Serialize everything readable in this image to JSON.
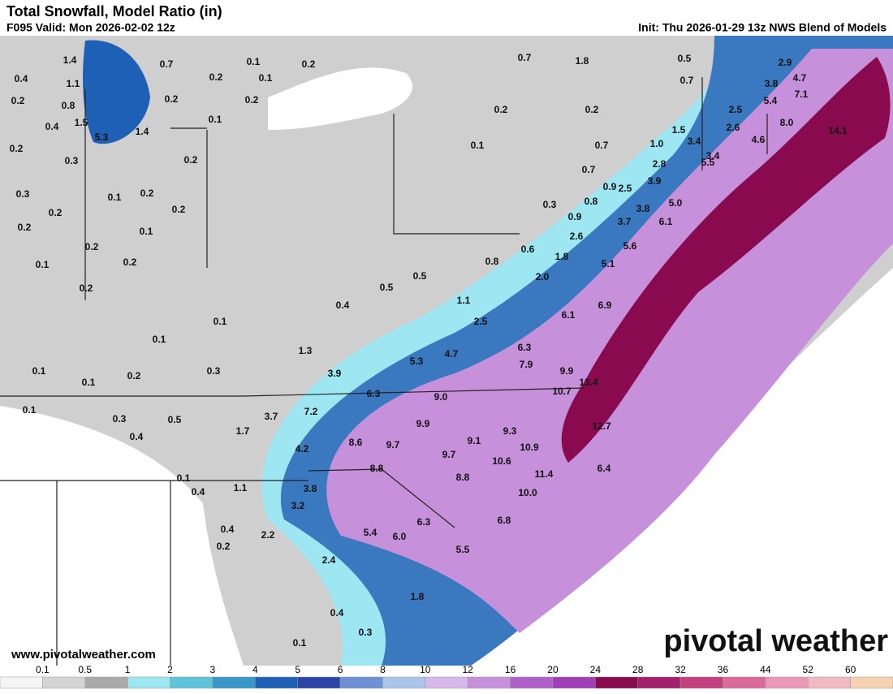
{
  "header": {
    "title": "Total Snowfall, Model Ratio (in)",
    "valid": "F095 Valid: Mon 2026-02-02 12z",
    "init": "Init: Thu 2026-01-29 13z NWS Blend of Models"
  },
  "map": {
    "labels": [
      "1.4",
      "0.7",
      "0.1",
      "0.2",
      "0.4",
      "1.1",
      "0.2",
      "0.1",
      "0.2",
      "0.8",
      "0.2",
      "0.2",
      "0.4",
      "1.5",
      "5.3",
      "1.4",
      "0.1",
      "0.2",
      "0.3",
      "0.2",
      "0.3",
      "0.1",
      "0.2",
      "0.2",
      "0.2",
      "0.2",
      "0.1",
      "0.2",
      "0.1",
      "0.2",
      "0.2",
      "0.1",
      "0.1",
      "0.1",
      "0.1",
      "0.2",
      "0.3",
      "0.1",
      "0.3",
      "0.5",
      "0.4",
      "0.1",
      "0.4",
      "1.1",
      "0.4",
      "0.2",
      "2.2",
      "2.4",
      "3.2",
      "3.8",
      "0.4",
      "0.3",
      "0.1",
      "1.8",
      "5.5",
      "5.4",
      "6.0",
      "6.3",
      "6.8",
      "10.0",
      "11.4",
      "10.6",
      "10.9",
      "9.3",
      "9.1",
      "9.7",
      "8.8",
      "8.8",
      "9.7",
      "8.6",
      "9.9",
      "4.2",
      "1.7",
      "3.7",
      "7.2",
      "6.3",
      "9.0",
      "3.9",
      "1.3",
      "5.3",
      "4.7",
      "6.3",
      "7.9",
      "9.9",
      "10.7",
      "13.4",
      "12.7",
      "6.4",
      "2.5",
      "1.1",
      "0.4",
      "0.5",
      "0.5",
      "0.8",
      "0.6",
      "2.0",
      "1.8",
      "6.1",
      "6.9",
      "2.6",
      "5.1",
      "5.6",
      "3.7",
      "3.8",
      "6.1",
      "5.0",
      "0.9",
      "0.3",
      "0.8",
      "0.9",
      "0.7",
      "2.5",
      "3.9",
      "2.8",
      "0.7",
      "1.0",
      "1.5",
      "3.4",
      "5.5",
      "3.4",
      "2.6",
      "2.5",
      "4.6",
      "5.4",
      "3.8",
      "8.0",
      "7.1",
      "4.7",
      "2.9",
      "14.1",
      "0.7",
      "1.8",
      "0.5",
      "0.7",
      "0.2",
      "0.2",
      "0.1"
    ]
  },
  "footer": {
    "website": "www.pivotalweather.com",
    "logo": "pivotal weather"
  },
  "legend": {
    "ticks": [
      "0.1",
      "0.5",
      "1",
      "2",
      "3",
      "4",
      "5",
      "6",
      "8",
      "10",
      "12",
      "16",
      "20",
      "24",
      "28",
      "32",
      "36",
      "44",
      "52",
      "60"
    ],
    "colors": [
      "#f4f4f4",
      "#d4d4d4",
      "#aaaaaa",
      "#9ee7f2",
      "#5fc4da",
      "#3a98c6",
      "#1e60b6",
      "#2c46a8",
      "#6f90d2",
      "#a9c5ea",
      "#d6b9ea",
      "#c690da",
      "#b061c9",
      "#a13fb8",
      "#8a0a50",
      "#a2206c",
      "#c2407f",
      "#d96a9a",
      "#e999b5",
      "#f1b9c2",
      "#f6d2b2"
    ]
  }
}
